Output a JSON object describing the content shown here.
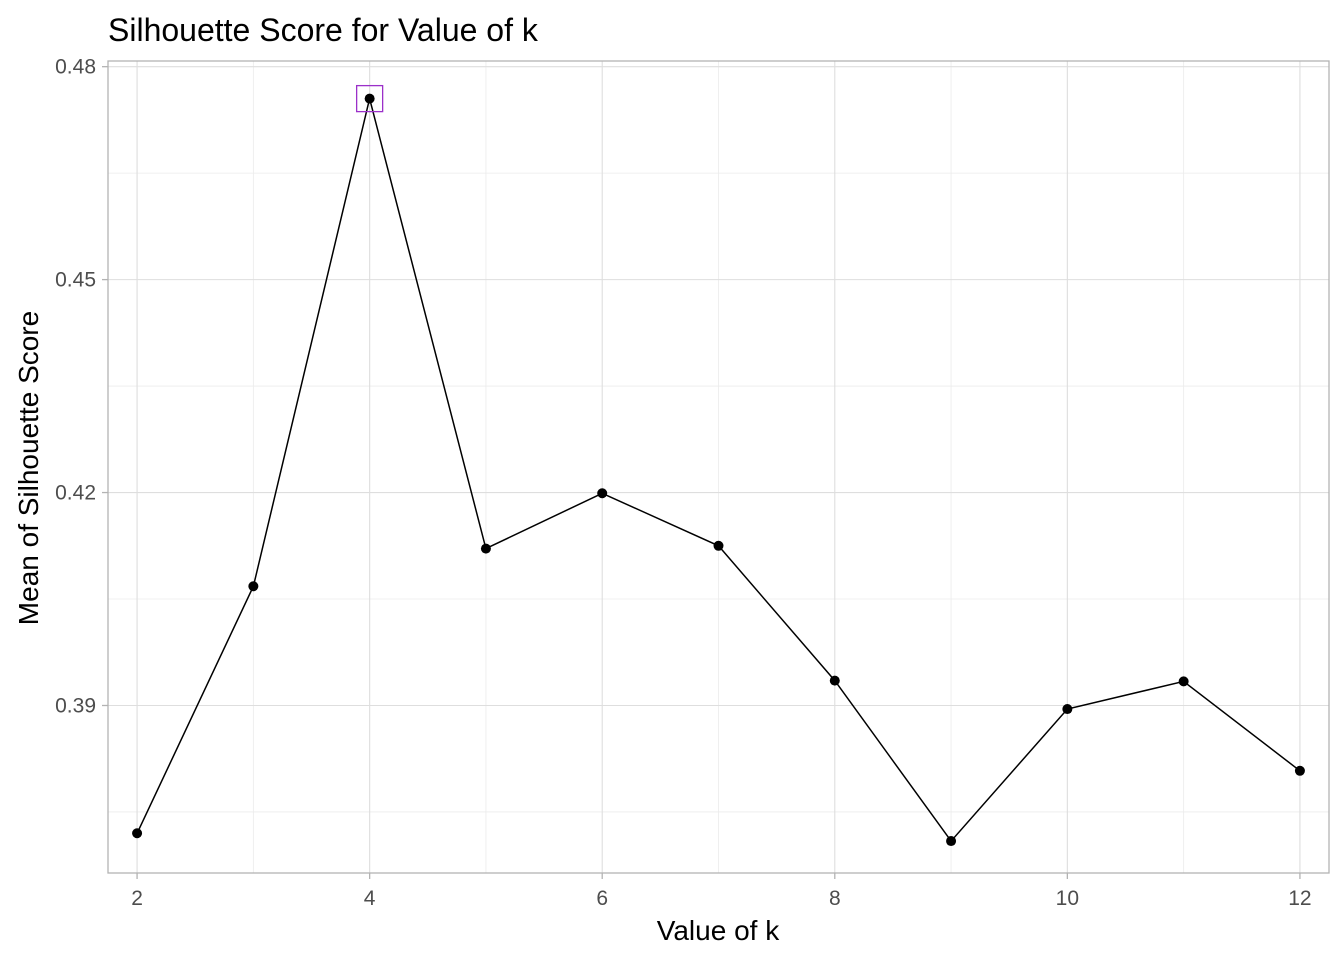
{
  "chart_data": {
    "type": "line",
    "title": "Silhouette Score for Value of k",
    "xlabel": "Value of k",
    "ylabel": "Mean of Silhouette Score",
    "x": [
      2,
      3,
      4,
      5,
      6,
      7,
      8,
      9,
      10,
      11,
      12
    ],
    "series": [
      {
        "values": [
          0.372,
          0.4068,
          0.4755,
          0.4121,
          0.4199,
          0.4125,
          0.3935,
          0.3709,
          0.3895,
          0.3934,
          0.3808
        ]
      }
    ],
    "xlim": [
      1.75,
      12.25
    ],
    "ylim": [
      0.3664,
      0.4808
    ],
    "xticks": [
      2,
      4,
      6,
      8,
      10,
      12
    ],
    "yticks": [
      0.39,
      0.42,
      0.45,
      0.48
    ],
    "ytick_labels": [
      "0.39",
      "0.42",
      "0.45",
      "0.48"
    ],
    "grid": true,
    "highlight": {
      "x": 4,
      "color": "#9b30c9"
    },
    "colors": {
      "line": "#000000",
      "point": "#000000",
      "grid": "#dedede"
    }
  }
}
